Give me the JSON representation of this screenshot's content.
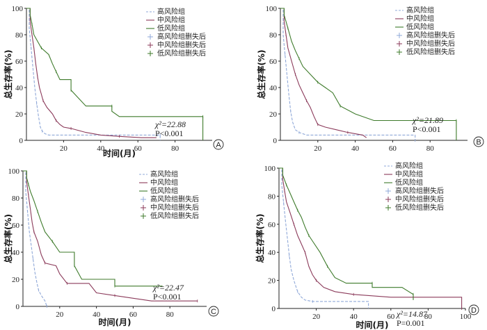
{
  "colors": {
    "high": "#8fa8d8",
    "mid": "#8b3a5a",
    "low": "#3d7a2a",
    "axis": "#222222"
  },
  "chart_data": [
    {
      "type": "line",
      "panel": "A",
      "ylabel": "总生存率(%)",
      "xlabel": "时间(月)",
      "ylim": [
        0,
        100
      ],
      "xlim": [
        0,
        100
      ],
      "yticks": [
        "0",
        "20",
        "40",
        "60",
        "80",
        "100"
      ],
      "xticks": [
        "20",
        "40",
        "60",
        "80"
      ],
      "legend": [
        "高风险组",
        "中风险组",
        "低风险组",
        "高风险组删失后",
        "中风险组删失后",
        "低风险组删失后"
      ],
      "stat": {
        "chi": "χ²=22.88",
        "p": "P<0.001"
      },
      "series": [
        {
          "name": "高风险组",
          "color_key": "high",
          "dash": true,
          "points": [
            [
              0,
              100
            ],
            [
              1.5,
              100
            ],
            [
              1.5,
              85
            ],
            [
              2.5,
              70
            ],
            [
              3.5,
              55
            ],
            [
              4.5,
              40
            ],
            [
              5.5,
              28
            ],
            [
              6.5,
              18
            ],
            [
              7.5,
              10
            ],
            [
              8.5,
              7
            ],
            [
              10,
              5
            ],
            [
              12,
              4
            ],
            [
              72,
              4
            ],
            [
              72,
              0
            ]
          ]
        },
        {
          "name": "中风险组",
          "color_key": "mid",
          "dash": false,
          "points": [
            [
              0,
              100
            ],
            [
              2,
              100
            ],
            [
              2,
              90
            ],
            [
              3,
              80
            ],
            [
              4,
              70
            ],
            [
              5,
              58
            ],
            [
              6,
              48
            ],
            [
              7,
              40
            ],
            [
              8,
              35
            ],
            [
              9,
              30
            ],
            [
              11,
              25
            ],
            [
              14,
              20
            ],
            [
              16,
              15
            ],
            [
              18,
              12
            ],
            [
              20,
              10
            ],
            [
              24,
              9
            ],
            [
              32,
              6
            ],
            [
              40,
              4
            ],
            [
              50,
              3
            ],
            [
              62,
              2
            ],
            [
              70,
              2
            ]
          ]
        },
        {
          "name": "低风险组",
          "color_key": "low",
          "dash": false,
          "points": [
            [
              0,
              100
            ],
            [
              2,
              100
            ],
            [
              2,
              95
            ],
            [
              3,
              88
            ],
            [
              4,
              80
            ],
            [
              6,
              75
            ],
            [
              8,
              70
            ],
            [
              12,
              65
            ],
            [
              14,
              58
            ],
            [
              16,
              52
            ],
            [
              18,
              46
            ],
            [
              24,
              46
            ],
            [
              24,
              38
            ],
            [
              28,
              32
            ],
            [
              32,
              26
            ],
            [
              46,
              26
            ],
            [
              46,
              22
            ],
            [
              50,
              18
            ],
            [
              95,
              18
            ],
            [
              95,
              0
            ]
          ]
        }
      ]
    },
    {
      "type": "line",
      "panel": "B",
      "ylabel": "总生存率(%)",
      "xlabel": "",
      "ylim": [
        0,
        100
      ],
      "xlim": [
        0,
        100
      ],
      "yticks": [
        "0",
        "20",
        "40",
        "60",
        "80",
        "100"
      ],
      "xticks": [
        "20",
        "40",
        "60",
        "80"
      ],
      "legend": [
        "高风险组",
        "中风险组",
        "低风险组",
        "高风险组删失后",
        "中风险组删失后",
        "低风险组删失后"
      ],
      "stat": {
        "chi": "χ²=21.89",
        "p": "P<0.001"
      },
      "series": [
        {
          "name": "高风险组",
          "color_key": "high",
          "dash": true,
          "points": [
            [
              0,
              100
            ],
            [
              1.5,
              100
            ],
            [
              1.5,
              80
            ],
            [
              2.5,
              65
            ],
            [
              3.5,
              50
            ],
            [
              4.5,
              35
            ],
            [
              5.5,
              22
            ],
            [
              6.5,
              14
            ],
            [
              8,
              8
            ],
            [
              10,
              6
            ],
            [
              14,
              4
            ],
            [
              72,
              4
            ],
            [
              72,
              0
            ]
          ]
        },
        {
          "name": "中风险组",
          "color_key": "mid",
          "dash": false,
          "points": [
            [
              0,
              100
            ],
            [
              2,
              100
            ],
            [
              2,
              90
            ],
            [
              3,
              80
            ],
            [
              4,
              70
            ],
            [
              6,
              60
            ],
            [
              8,
              50
            ],
            [
              10,
              42
            ],
            [
              12,
              36
            ],
            [
              14,
              30
            ],
            [
              16,
              25
            ],
            [
              18,
              18
            ],
            [
              20,
              12
            ],
            [
              24,
              10
            ],
            [
              30,
              8
            ],
            [
              36,
              6
            ],
            [
              44,
              4
            ],
            [
              46,
              2
            ]
          ]
        },
        {
          "name": "低风险组",
          "color_key": "low",
          "dash": false,
          "points": [
            [
              0,
              100
            ],
            [
              2,
              100
            ],
            [
              2,
              95
            ],
            [
              4,
              85
            ],
            [
              6,
              75
            ],
            [
              8,
              68
            ],
            [
              10,
              62
            ],
            [
              12,
              56
            ],
            [
              16,
              50
            ],
            [
              20,
              44
            ],
            [
              24,
              40
            ],
            [
              28,
              36
            ],
            [
              32,
              26
            ],
            [
              40,
              20
            ],
            [
              50,
              15
            ],
            [
              94,
              15
            ],
            [
              94,
              0
            ]
          ]
        }
      ]
    },
    {
      "type": "line",
      "panel": "C",
      "ylabel": "总生存率(%)",
      "xlabel": "时间(月)",
      "ylim": [
        0,
        100
      ],
      "xlim": [
        0,
        100
      ],
      "yticks": [
        "0",
        "20",
        "40",
        "60",
        "80",
        "100"
      ],
      "xticks": [
        "20",
        "40",
        "60",
        "80"
      ],
      "legend": [
        "高风险组",
        "中风险组",
        "低风险组",
        "高风险组删失后",
        "中风险组删失后",
        "低风险组删失后"
      ],
      "stat": {
        "chi": "χ²=22.47",
        "p": "P<0.001"
      },
      "series": [
        {
          "name": "高风险组",
          "color_key": "high",
          "dash": true,
          "points": [
            [
              0,
              100
            ],
            [
              1.5,
              100
            ],
            [
              1.5,
              85
            ],
            [
              2.5,
              70
            ],
            [
              3.5,
              55
            ],
            [
              4.5,
              45
            ],
            [
              5.5,
              35
            ],
            [
              6.5,
              25
            ],
            [
              7.5,
              18
            ],
            [
              8.5,
              12
            ],
            [
              10,
              8
            ],
            [
              12,
              4
            ],
            [
              13,
              0
            ]
          ]
        },
        {
          "name": "中风险组",
          "color_key": "mid",
          "dash": false,
          "points": [
            [
              0,
              100
            ],
            [
              2,
              100
            ],
            [
              2,
              92
            ],
            [
              3,
              82
            ],
            [
              4,
              72
            ],
            [
              5,
              62
            ],
            [
              6,
              55
            ],
            [
              8,
              48
            ],
            [
              10,
              38
            ],
            [
              12,
              32
            ],
            [
              18,
              30
            ],
            [
              20,
              24
            ],
            [
              24,
              17
            ],
            [
              36,
              17
            ],
            [
              40,
              10
            ],
            [
              50,
              8
            ],
            [
              60,
              6
            ],
            [
              70,
              4
            ],
            [
              95,
              4
            ]
          ]
        },
        {
          "name": "低风险组",
          "color_key": "low",
          "dash": false,
          "points": [
            [
              0,
              100
            ],
            [
              2,
              100
            ],
            [
              2,
              95
            ],
            [
              3,
              90
            ],
            [
              4,
              85
            ],
            [
              6,
              78
            ],
            [
              8,
              70
            ],
            [
              10,
              62
            ],
            [
              12,
              55
            ],
            [
              16,
              48
            ],
            [
              20,
              40
            ],
            [
              28,
              40
            ],
            [
              28,
              30
            ],
            [
              32,
              20
            ],
            [
              50,
              20
            ],
            [
              50,
              15
            ],
            [
              76,
              15
            ]
          ]
        }
      ]
    },
    {
      "type": "line",
      "panel": "D",
      "ylabel": "总生存率(%)",
      "xlabel": "时间(月)",
      "ylim": [
        0,
        100
      ],
      "xlim": [
        0,
        100
      ],
      "yticks": [
        "0",
        "20",
        "40",
        "60",
        "80",
        "100"
      ],
      "xticks": [
        "20",
        "40",
        "60",
        "80",
        "100"
      ],
      "legend": [
        "高风险组",
        "中风险组",
        "低风险组",
        "高风险组删失后",
        "中风险组删失后",
        "低风险组删失后"
      ],
      "stat": {
        "chi": "χ²=14.87",
        "p": "P=0.001"
      },
      "series": [
        {
          "name": "高风险组",
          "color_key": "high",
          "dash": true,
          "points": [
            [
              0,
              100
            ],
            [
              1.5,
              100
            ],
            [
              1.5,
              88
            ],
            [
              2.5,
              75
            ],
            [
              3.5,
              62
            ],
            [
              4.5,
              50
            ],
            [
              5.5,
              38
            ],
            [
              6.5,
              28
            ],
            [
              8,
              20
            ],
            [
              10,
              12
            ],
            [
              12,
              8
            ],
            [
              14,
              6
            ],
            [
              18,
              5
            ],
            [
              48,
              5
            ],
            [
              48,
              0
            ]
          ]
        },
        {
          "name": "中风险组",
          "color_key": "mid",
          "dash": false,
          "points": [
            [
              0,
              100
            ],
            [
              2,
              100
            ],
            [
              2,
              92
            ],
            [
              3,
              84
            ],
            [
              4,
              76
            ],
            [
              6,
              68
            ],
            [
              8,
              60
            ],
            [
              10,
              52
            ],
            [
              12,
              46
            ],
            [
              14,
              40
            ],
            [
              16,
              30
            ],
            [
              18,
              24
            ],
            [
              20,
              20
            ],
            [
              24,
              15
            ],
            [
              30,
              12
            ],
            [
              40,
              10
            ],
            [
              60,
              8
            ],
            [
              98,
              8
            ],
            [
              98,
              0
            ]
          ]
        },
        {
          "name": "低风险组",
          "color_key": "low",
          "dash": false,
          "points": [
            [
              0,
              100
            ],
            [
              2,
              100
            ],
            [
              2,
              95
            ],
            [
              4,
              88
            ],
            [
              6,
              82
            ],
            [
              8,
              76
            ],
            [
              10,
              70
            ],
            [
              12,
              65
            ],
            [
              14,
              58
            ],
            [
              16,
              52
            ],
            [
              18,
              48
            ],
            [
              22,
              40
            ],
            [
              26,
              30
            ],
            [
              30,
              22
            ],
            [
              36,
              18
            ],
            [
              50,
              18
            ],
            [
              50,
              15
            ],
            [
              66,
              15
            ],
            [
              72,
              10
            ],
            [
              72,
              6
            ]
          ]
        }
      ]
    }
  ]
}
